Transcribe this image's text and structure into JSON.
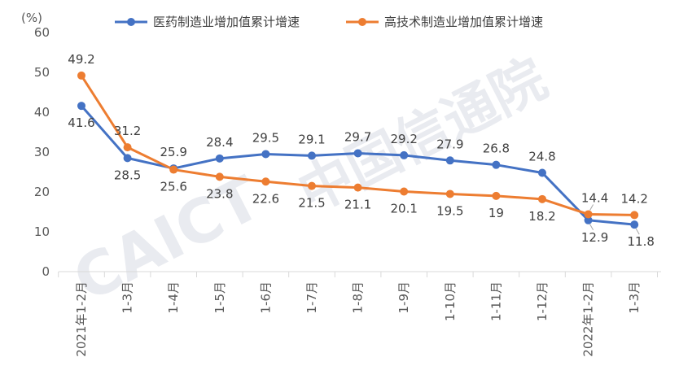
{
  "chart_data": {
    "type": "line",
    "unit_label": "(%)",
    "ylim": [
      0,
      60
    ],
    "y_ticks": [
      0,
      10,
      20,
      30,
      40,
      50,
      60
    ],
    "categories": [
      "2021年1-2月",
      "1-3月",
      "1-4月",
      "1-5月",
      "1-6月",
      "1-7月",
      "1-8月",
      "1-9月",
      "1-10月",
      "1-11月",
      "1-12月",
      "2022年1-2月",
      "1-3月"
    ],
    "series": [
      {
        "name": "医药制造业增加值累计增速",
        "color": "#4472c4",
        "values": [
          41.6,
          28.5,
          25.9,
          28.4,
          29.5,
          29.1,
          29.7,
          29.2,
          27.9,
          26.8,
          24.8,
          12.9,
          11.8
        ],
        "labels": [
          "41.6",
          "28.5",
          "25.9",
          "28.4",
          "29.5",
          "29.1",
          "29.7",
          "29.2",
          "27.9",
          "26.8",
          "24.8",
          "12.9",
          "11.8"
        ]
      },
      {
        "name": "高技术制造业增加值累计增速",
        "color": "#ed7d31",
        "values": [
          49.2,
          31.2,
          25.6,
          23.8,
          22.6,
          21.5,
          21.1,
          20.1,
          19.5,
          19,
          18.2,
          14.4,
          14.2
        ],
        "labels": [
          "49.2",
          "31.2",
          "25.6",
          "23.8",
          "22.6",
          "21.5",
          "21.1",
          "20.1",
          "19.5",
          "19",
          "18.2",
          "14.4",
          "14.2"
        ]
      }
    ],
    "legend_position": "top",
    "grid": false
  },
  "watermark": {
    "latin": "CAICT",
    "chinese": "中国信通院"
  }
}
